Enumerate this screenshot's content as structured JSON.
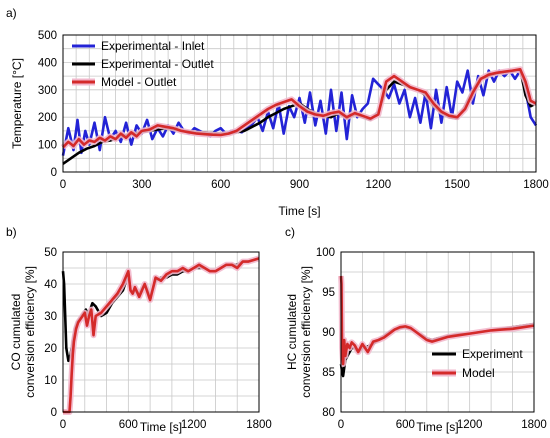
{
  "chart_data": [
    {
      "panel": "a)",
      "type": "line",
      "xlabel": "Time [s]",
      "ylabel": "Temperature [°C]",
      "xlim": [
        0,
        1800
      ],
      "ylim": [
        0,
        500
      ],
      "xticks": [
        0,
        300,
        600,
        900,
        1200,
        1500,
        1800
      ],
      "yticks": [
        0,
        100,
        200,
        300,
        400,
        500
      ],
      "grid": true,
      "legend_position": "top-left",
      "series": [
        {
          "name": "Experimental - Inlet",
          "color": "#2323d6",
          "x": [
            0,
            20,
            40,
            55,
            70,
            85,
            100,
            120,
            140,
            160,
            180,
            200,
            220,
            240,
            260,
            280,
            300,
            320,
            340,
            360,
            380,
            400,
            420,
            440,
            460,
            480,
            500,
            520,
            540,
            560,
            580,
            600,
            620,
            640,
            660,
            680,
            700,
            720,
            740,
            760,
            780,
            800,
            820,
            840,
            860,
            880,
            900,
            920,
            940,
            960,
            980,
            1000,
            1020,
            1040,
            1060,
            1080,
            1100,
            1120,
            1140,
            1160,
            1180,
            1200,
            1220,
            1240,
            1260,
            1280,
            1300,
            1320,
            1340,
            1360,
            1380,
            1400,
            1420,
            1440,
            1460,
            1480,
            1500,
            1520,
            1540,
            1560,
            1580,
            1600,
            1620,
            1640,
            1660,
            1680,
            1700,
            1720,
            1740,
            1760,
            1780,
            1800
          ],
          "y": [
            60,
            160,
            80,
            190,
            70,
            150,
            100,
            180,
            80,
            200,
            120,
            150,
            110,
            180,
            100,
            170,
            140,
            190,
            120,
            160,
            130,
            170,
            140,
            180,
            150,
            140,
            160,
            150,
            140,
            130,
            150,
            160,
            140,
            150,
            150,
            145,
            160,
            175,
            200,
            150,
            220,
            160,
            250,
            140,
            240,
            200,
            270,
            180,
            290,
            170,
            260,
            140,
            300,
            150,
            290,
            120,
            280,
            200,
            230,
            250,
            340,
            320,
            300,
            270,
            320,
            250,
            300,
            200,
            270,
            180,
            290,
            160,
            300,
            180,
            310,
            200,
            330,
            290,
            370,
            250,
            350,
            280,
            370,
            330,
            370,
            350,
            370,
            340,
            370,
            300,
            200,
            170
          ]
        },
        {
          "name": "Experimental - Outlet",
          "color": "#000000",
          "x": [
            0,
            30,
            60,
            90,
            120,
            150,
            180,
            210,
            240,
            270,
            300,
            330,
            360,
            390,
            420,
            450,
            480,
            510,
            540,
            570,
            600,
            630,
            660,
            690,
            720,
            750,
            780,
            810,
            840,
            870,
            900,
            930,
            960,
            990,
            1020,
            1050,
            1080,
            1110,
            1140,
            1170,
            1200,
            1230,
            1260,
            1290,
            1320,
            1350,
            1380,
            1410,
            1440,
            1470,
            1500,
            1530,
            1560,
            1590,
            1620,
            1650,
            1680,
            1710,
            1740,
            1760,
            1780,
            1800
          ],
          "y": [
            30,
            50,
            70,
            85,
            95,
            110,
            115,
            125,
            135,
            140,
            145,
            150,
            155,
            160,
            155,
            150,
            148,
            146,
            144,
            142,
            140,
            140,
            145,
            150,
            165,
            180,
            200,
            215,
            230,
            240,
            250,
            230,
            215,
            205,
            200,
            215,
            195,
            210,
            200,
            190,
            220,
            300,
            330,
            320,
            310,
            300,
            280,
            240,
            215,
            200,
            195,
            240,
            300,
            340,
            350,
            360,
            365,
            368,
            375,
            280,
            240,
            250
          ]
        },
        {
          "name": "Model - Outlet",
          "color": "#d42a2a",
          "x": [
            0,
            20,
            40,
            60,
            80,
            100,
            120,
            140,
            160,
            180,
            200,
            220,
            240,
            260,
            280,
            300,
            330,
            360,
            390,
            420,
            450,
            480,
            510,
            540,
            570,
            600,
            630,
            660,
            690,
            720,
            750,
            780,
            810,
            840,
            870,
            900,
            930,
            960,
            990,
            1020,
            1050,
            1080,
            1110,
            1140,
            1170,
            1200,
            1230,
            1260,
            1290,
            1320,
            1350,
            1380,
            1410,
            1440,
            1470,
            1500,
            1530,
            1560,
            1590,
            1620,
            1650,
            1680,
            1710,
            1740,
            1760,
            1780,
            1800
          ],
          "y": [
            90,
            110,
            95,
            120,
            100,
            115,
            110,
            125,
            115,
            130,
            120,
            140,
            125,
            145,
            130,
            150,
            155,
            170,
            165,
            160,
            150,
            145,
            140,
            138,
            136,
            135,
            140,
            150,
            170,
            190,
            210,
            230,
            245,
            255,
            265,
            240,
            220,
            210,
            205,
            215,
            220,
            200,
            215,
            205,
            195,
            210,
            330,
            350,
            330,
            310,
            300,
            290,
            250,
            220,
            205,
            200,
            230,
            290,
            340,
            355,
            362,
            366,
            370,
            375,
            330,
            260,
            250
          ]
        }
      ]
    },
    {
      "panel": "b)",
      "type": "line",
      "xlabel": "Time [s]",
      "ylabel": "CO cumulated conversion efficiency [%]",
      "xlim": [
        0,
        1800
      ],
      "ylim": [
        0,
        50
      ],
      "xticks": [
        0,
        600,
        1200,
        1800
      ],
      "yticks": [
        0,
        10,
        20,
        30,
        40,
        50
      ],
      "grid": true,
      "series": [
        {
          "name": "Experiment",
          "color": "#000000",
          "x": [
            0,
            10,
            20,
            30,
            50,
            70,
            90,
            110,
            130,
            150,
            170,
            190,
            210,
            230,
            250,
            270,
            300,
            350,
            400,
            450,
            500,
            550,
            600,
            620,
            640,
            660,
            700,
            750,
            800,
            850,
            900,
            950,
            1000,
            1050,
            1100,
            1150,
            1200,
            1250,
            1300,
            1350,
            1400,
            1450,
            1500,
            1550,
            1600,
            1650,
            1700,
            1750,
            1800
          ],
          "y": [
            44,
            40,
            30,
            20,
            16,
            18,
            22,
            26,
            28,
            29,
            30,
            31,
            32,
            30,
            32,
            34,
            33,
            30,
            31,
            34,
            36,
            38,
            43,
            38,
            37,
            38,
            37,
            40,
            36,
            41,
            42,
            42,
            43,
            43,
            44,
            44,
            45,
            45,
            45,
            44,
            44,
            45,
            46,
            46,
            46,
            47,
            47,
            47.5,
            48
          ]
        },
        {
          "name": "Model",
          "color": "#d42a2a",
          "x": [
            0,
            20,
            40,
            60,
            70,
            80,
            90,
            100,
            120,
            140,
            160,
            180,
            200,
            220,
            240,
            260,
            280,
            300,
            350,
            400,
            450,
            500,
            550,
            600,
            620,
            640,
            660,
            700,
            750,
            800,
            850,
            900,
            950,
            1000,
            1050,
            1100,
            1150,
            1200,
            1250,
            1300,
            1350,
            1400,
            1450,
            1500,
            1550,
            1600,
            1650,
            1700,
            1750,
            1800
          ],
          "y": [
            0,
            0,
            0,
            0,
            5,
            12,
            18,
            22,
            26,
            28,
            29,
            30,
            31,
            27,
            30,
            32,
            24,
            30,
            31,
            33,
            35,
            37,
            40,
            44,
            38,
            37,
            39,
            36,
            40,
            35,
            42,
            41,
            43,
            44,
            44,
            45,
            44,
            45,
            46,
            45,
            44,
            44,
            45,
            46,
            46,
            45,
            47,
            47,
            47.5,
            48
          ]
        }
      ]
    },
    {
      "panel": "c)",
      "type": "line",
      "xlabel": "Time [s]",
      "ylabel": "HC cumulated conversion efficiency [%]",
      "xlim": [
        0,
        1800
      ],
      "ylim": [
        80,
        100
      ],
      "xticks": [
        0,
        600,
        1200,
        1800
      ],
      "yticks": [
        80,
        85,
        90,
        95,
        100
      ],
      "grid": true,
      "legend_position": "bottom-right",
      "series": [
        {
          "name": "Experiment",
          "color": "#000000",
          "x": [
            0,
            10,
            20,
            30,
            40,
            60,
            80,
            100,
            130,
            160,
            200,
            250,
            300,
            350,
            400,
            450,
            500,
            550,
            600,
            650,
            700,
            750,
            800,
            850,
            900,
            1000,
            1100,
            1200,
            1300,
            1400,
            1500,
            1600,
            1700,
            1800
          ],
          "y": [
            86,
            85,
            84.5,
            85.5,
            86.5,
            87,
            87.5,
            88,
            88,
            87.5,
            88,
            88.2,
            88.5,
            89,
            89.5,
            90,
            90.3,
            90.5,
            90.6,
            90.4,
            90,
            89.6,
            89.2,
            89,
            89.2,
            89.5,
            89.7,
            89.8,
            90,
            90.2,
            90.4,
            90.6,
            90.8,
            91
          ]
        },
        {
          "name": "Model",
          "color": "#d42a2a",
          "x": [
            0,
            5,
            10,
            20,
            30,
            40,
            60,
            80,
            100,
            130,
            160,
            200,
            250,
            300,
            350,
            400,
            450,
            500,
            550,
            600,
            650,
            700,
            750,
            800,
            850,
            900,
            1000,
            1100,
            1200,
            1300,
            1400,
            1500,
            1600,
            1700,
            1800
          ],
          "y": [
            97,
            96,
            88,
            86,
            89,
            87,
            88.5,
            88,
            88.7,
            88.3,
            87.5,
            88.5,
            87.5,
            88.8,
            89,
            89.3,
            89.8,
            90.3,
            90.6,
            90.7,
            90.5,
            90,
            89.5,
            89,
            88.8,
            89,
            89.4,
            89.6,
            89.8,
            90,
            90.2,
            90.3,
            90.4,
            90.6,
            90.8
          ]
        }
      ]
    }
  ]
}
